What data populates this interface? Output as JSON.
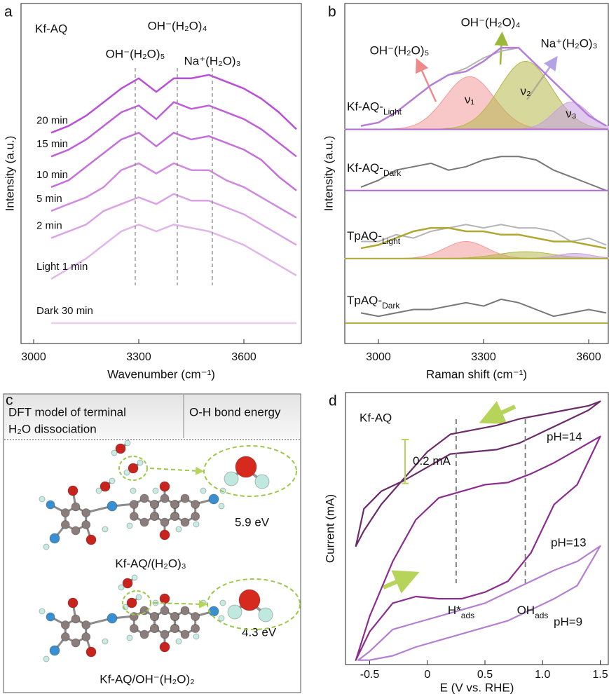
{
  "chart_data": [
    {
      "panel": "a",
      "type": "line",
      "title": "Kf-AQ",
      "xlabel": "Wavenumber (cm⁻¹)",
      "ylabel": "Intensity (a.u.)",
      "xlim": [
        2964,
        3764
      ],
      "xticks": [
        3000,
        3300,
        3600
      ],
      "ylim": [
        0,
        10
      ],
      "x": [
        3050,
        3100,
        3150,
        3200,
        3250,
        3300,
        3350,
        3400,
        3450,
        3500,
        3550,
        3600,
        3650,
        3700,
        3750
      ],
      "series": [
        {
          "name": "20 min",
          "color": "#b84fd6",
          "values": [
            6.2,
            6.4,
            6.7,
            7.1,
            7.5,
            7.8,
            7.4,
            7.8,
            7.8,
            7.9,
            7.7,
            7.5,
            7.2,
            6.8,
            6.3
          ]
        },
        {
          "name": "15 min",
          "color": "#bf5fd9",
          "values": [
            5.5,
            5.7,
            6.0,
            6.4,
            6.8,
            7.0,
            6.6,
            7.1,
            6.9,
            7.0,
            6.8,
            6.6,
            6.3,
            5.9,
            5.5
          ]
        },
        {
          "name": "10 min",
          "color": "#c56fdb",
          "values": [
            4.6,
            4.8,
            5.2,
            5.6,
            6.0,
            6.2,
            5.8,
            6.2,
            6.0,
            6.1,
            5.9,
            5.7,
            5.4,
            4.9,
            4.5
          ]
        },
        {
          "name": "5 min",
          "color": "#d08ae0",
          "values": [
            3.9,
            4.1,
            4.3,
            4.6,
            5.1,
            5.3,
            5.0,
            5.3,
            5.1,
            5.1,
            4.8,
            4.6,
            4.3,
            4.0,
            3.7
          ]
        },
        {
          "name": "2 min",
          "color": "#dba3e6",
          "values": [
            3.1,
            3.3,
            3.5,
            3.9,
            4.1,
            4.3,
            4.1,
            4.4,
            4.2,
            4.2,
            4.0,
            3.8,
            3.5,
            3.2,
            2.9
          ]
        },
        {
          "name": "Light 1 min",
          "color": "#e2b6ea",
          "values": [
            1.9,
            2.2,
            2.5,
            2.9,
            3.3,
            3.5,
            3.3,
            3.5,
            3.4,
            3.3,
            3.1,
            2.9,
            2.6,
            2.3,
            2.0
          ]
        },
        {
          "name": "Dark 30 min",
          "color": "#ecccf0",
          "values": [
            0.6,
            0.6,
            0.6,
            0.6,
            0.6,
            0.6,
            0.6,
            0.6,
            0.6,
            0.6,
            0.6,
            0.6,
            0.6,
            0.6,
            0.6
          ]
        }
      ],
      "annotations": [
        {
          "text": "OH⁻(H₂O)₅",
          "x": 3290
        },
        {
          "text": "OH⁻(H₂O)₄",
          "x": 3410
        },
        {
          "text": "Na⁺(H₂O)₃",
          "x": 3510
        }
      ]
    },
    {
      "panel": "b",
      "type": "fit",
      "xlabel": "Raman shift (cm⁻¹)",
      "ylabel": "Intensity (a.u.)",
      "xlim": [
        2904,
        3656
      ],
      "xticks": [
        3000,
        3300,
        3600
      ],
      "ylim": [
        0,
        10
      ],
      "x": [
        2950,
        3000,
        3050,
        3100,
        3150,
        3200,
        3250,
        3300,
        3350,
        3400,
        3450,
        3500,
        3550,
        3600,
        3650
      ],
      "rows": [
        {
          "label": "Kf-AQ-",
          "label_sub": "Light",
          "baseline": 6.3,
          "baseline_color": "#b266d9",
          "raw_color": "#b5b5b5",
          "raw": [
            6.4,
            6.5,
            6.8,
            7.2,
            7.6,
            7.9,
            8.1,
            8.4,
            8.6,
            8.7,
            8.2,
            7.7,
            7.2,
            6.7,
            6.4
          ],
          "fit": [
            6.4,
            6.5,
            6.8,
            7.2,
            7.6,
            7.9,
            8.0,
            8.3,
            8.7,
            8.7,
            8.2,
            7.7,
            7.2,
            6.7,
            6.4
          ],
          "fit_color": "#b57ed9",
          "components": [
            {
              "name": "ν₁",
              "center": 3260,
              "height": 1.55,
              "width": 70,
              "color": "#f29a9a"
            },
            {
              "name": "ν₂",
              "center": 3420,
              "height": 2.0,
              "width": 75,
              "color": "#b5b84a"
            },
            {
              "name": "ν₃",
              "center": 3550,
              "height": 0.8,
              "width": 50,
              "color": "#c7a1e0"
            }
          ]
        },
        {
          "label": "Kf-AQ-",
          "label_sub": "Dark",
          "baseline": 4.5,
          "baseline_color": "#b266d9",
          "raw_color": "#777777",
          "raw": [
            4.6,
            4.8,
            5.1,
            5.2,
            5.3,
            5.1,
            5.2,
            5.4,
            5.5,
            5.5,
            5.4,
            5.1,
            4.9,
            4.7,
            4.5
          ]
        },
        {
          "label": "TpAQ-",
          "label_sub": "Light",
          "baseline": 2.5,
          "baseline_color": "#b0a832",
          "raw_color": "#b5b5b5",
          "raw": [
            3.0,
            3.0,
            3.2,
            3.1,
            3.3,
            3.4,
            3.5,
            3.4,
            3.5,
            3.4,
            3.4,
            3.3,
            3.0,
            3.1,
            2.9
          ],
          "fit": [
            2.8,
            2.9,
            3.1,
            3.3,
            3.4,
            3.4,
            3.3,
            3.3,
            3.2,
            3.2,
            3.1,
            3.0,
            3.0,
            2.9,
            2.8
          ],
          "fit_color": "#b0a832",
          "components": [
            {
              "center": 3250,
              "height": 0.5,
              "width": 60,
              "color": "#f29a9a"
            },
            {
              "center": 3420,
              "height": 0.2,
              "width": 80,
              "color": "#b5b84a"
            },
            {
              "center": 3560,
              "height": 0.15,
              "width": 50,
              "color": "#c7a1e0"
            }
          ]
        },
        {
          "label": "TpAQ-",
          "label_sub": "Dark",
          "baseline": 0.6,
          "baseline_color": "#b0a832",
          "raw_color": "#777777",
          "raw": [
            0.9,
            0.8,
            0.9,
            1.0,
            1.0,
            1.1,
            1.2,
            1.1,
            1.3,
            1.2,
            1.0,
            0.8,
            0.9,
            1.0,
            0.9
          ]
        }
      ],
      "annotations": [
        "OH⁻(H₂O)₅",
        "OH⁻(H₂O)₄",
        "Na⁺(H₂O)₃"
      ]
    },
    {
      "panel": "d",
      "type": "cv",
      "title": "Kf-AQ",
      "xlabel": "E (V vs. RHE)",
      "ylabel": "Current (mA)",
      "xlim": [
        -0.71,
        1.57
      ],
      "xticks": [
        -0.5,
        0,
        0.5,
        {
          "value": 1,
          "label": "1.0"
        },
        1.5
      ],
      "ylim": [
        0.06,
        1.3
      ],
      "series": [
        {
          "name": "pH=14",
          "color": "#6b2c6b",
          "x": [
            -0.62,
            -0.55,
            -0.4,
            -0.2,
            0,
            0.2,
            0.4,
            0.6,
            0.8,
            1.0,
            1.2,
            1.4,
            1.5,
            1.4,
            1.2,
            1.0,
            0.8,
            0.6,
            0.4,
            0.2,
            0.1,
            0,
            -0.2,
            -0.4,
            -0.55,
            -0.62
          ],
          "values": [
            0.6,
            0.77,
            0.85,
            0.9,
            0.96,
            1.02,
            1.03,
            1.04,
            1.07,
            1.12,
            1.17,
            1.22,
            1.26,
            1.24,
            1.22,
            1.2,
            1.18,
            1.15,
            1.13,
            1.11,
            1.07,
            1.03,
            0.91,
            0.79,
            0.67,
            0.6
          ]
        },
        {
          "name": "pH=13",
          "color": "#8b2d8e",
          "x": [
            -0.62,
            -0.5,
            -0.3,
            -0.1,
            0.1,
            0.3,
            0.5,
            0.7,
            0.9,
            1.1,
            1.3,
            1.5,
            1.3,
            1.1,
            0.9,
            0.7,
            0.5,
            0.3,
            0.1,
            -0.1,
            -0.3,
            -0.5,
            -0.62
          ],
          "values": [
            0.08,
            0.28,
            0.53,
            0.72,
            0.82,
            0.85,
            0.88,
            0.89,
            0.93,
            0.98,
            1.04,
            1.1,
            0.88,
            0.79,
            0.57,
            0.44,
            0.39,
            0.36,
            0.36,
            0.37,
            0.34,
            0.21,
            0.08
          ]
        },
        {
          "name": "pH=9",
          "color": "#b57fd0",
          "x": [
            -0.6,
            -0.5,
            -0.3,
            -0.1,
            0.1,
            0.3,
            0.5,
            0.7,
            0.9,
            1.1,
            1.3,
            1.5,
            1.3,
            1.1,
            0.9,
            0.7,
            0.5,
            0.3,
            0.1,
            -0.1,
            -0.3,
            -0.5,
            -0.6
          ],
          "values": [
            0.08,
            0.12,
            0.22,
            0.25,
            0.28,
            0.31,
            0.34,
            0.39,
            0.44,
            0.49,
            0.53,
            0.6,
            0.42,
            0.36,
            0.31,
            0.26,
            0.23,
            0.2,
            0.17,
            0.14,
            0.1,
            0.08,
            0.08
          ]
        }
      ],
      "scale_bar": {
        "value": 0.2,
        "label": "0.2 mA"
      },
      "annotations": [
        {
          "text": "H*",
          "sub": "ads",
          "x": 0.25
        },
        {
          "text": "OH",
          "sub": "ads",
          "x": 0.85
        }
      ]
    }
  ],
  "panel_c": {
    "panel": "c",
    "header": {
      "model": [
        "DFT model of terminal",
        "H₂O dissociation"
      ],
      "energy": "O-H bond energy"
    },
    "rows": [
      {
        "model": "Kf-AQ/(H₂O)₃",
        "energy": "5.9 eV"
      },
      {
        "model": "Kf-AQ/OH⁻(H₂O)₂",
        "energy": "4.3 eV"
      }
    ]
  }
}
